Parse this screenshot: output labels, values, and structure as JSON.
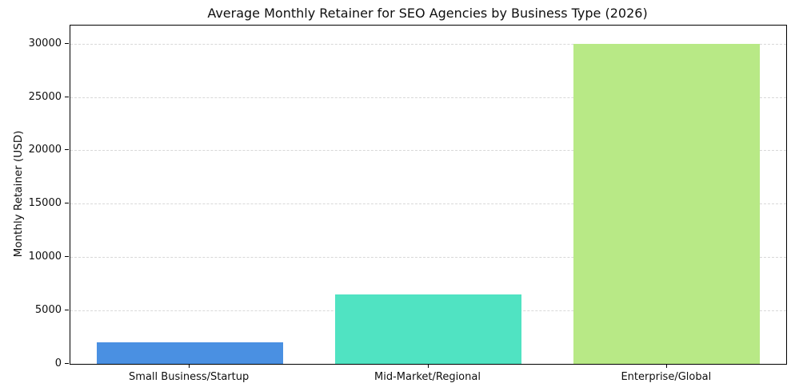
{
  "chart_data": {
    "type": "bar",
    "title": "Average Monthly Retainer for SEO Agencies by Business Type (2026)",
    "xlabel": "",
    "ylabel": "Monthly Retainer (USD)",
    "categories": [
      "Small Business/Startup",
      "Mid-Market/Regional",
      "Enterprise/Global"
    ],
    "values": [
      2000,
      6500,
      30000
    ],
    "bar_colors": [
      "#4a90e2",
      "#50e3c2",
      "#b8e986"
    ],
    "yticks": [
      0,
      5000,
      10000,
      15000,
      20000,
      25000,
      30000
    ],
    "ylim": [
      0,
      31700
    ],
    "grid": "horizontal-dashed",
    "gridline_color": "#d8d8d8",
    "legend_position": "none",
    "background_color": "#ffffff",
    "spine_color": "#000000"
  }
}
